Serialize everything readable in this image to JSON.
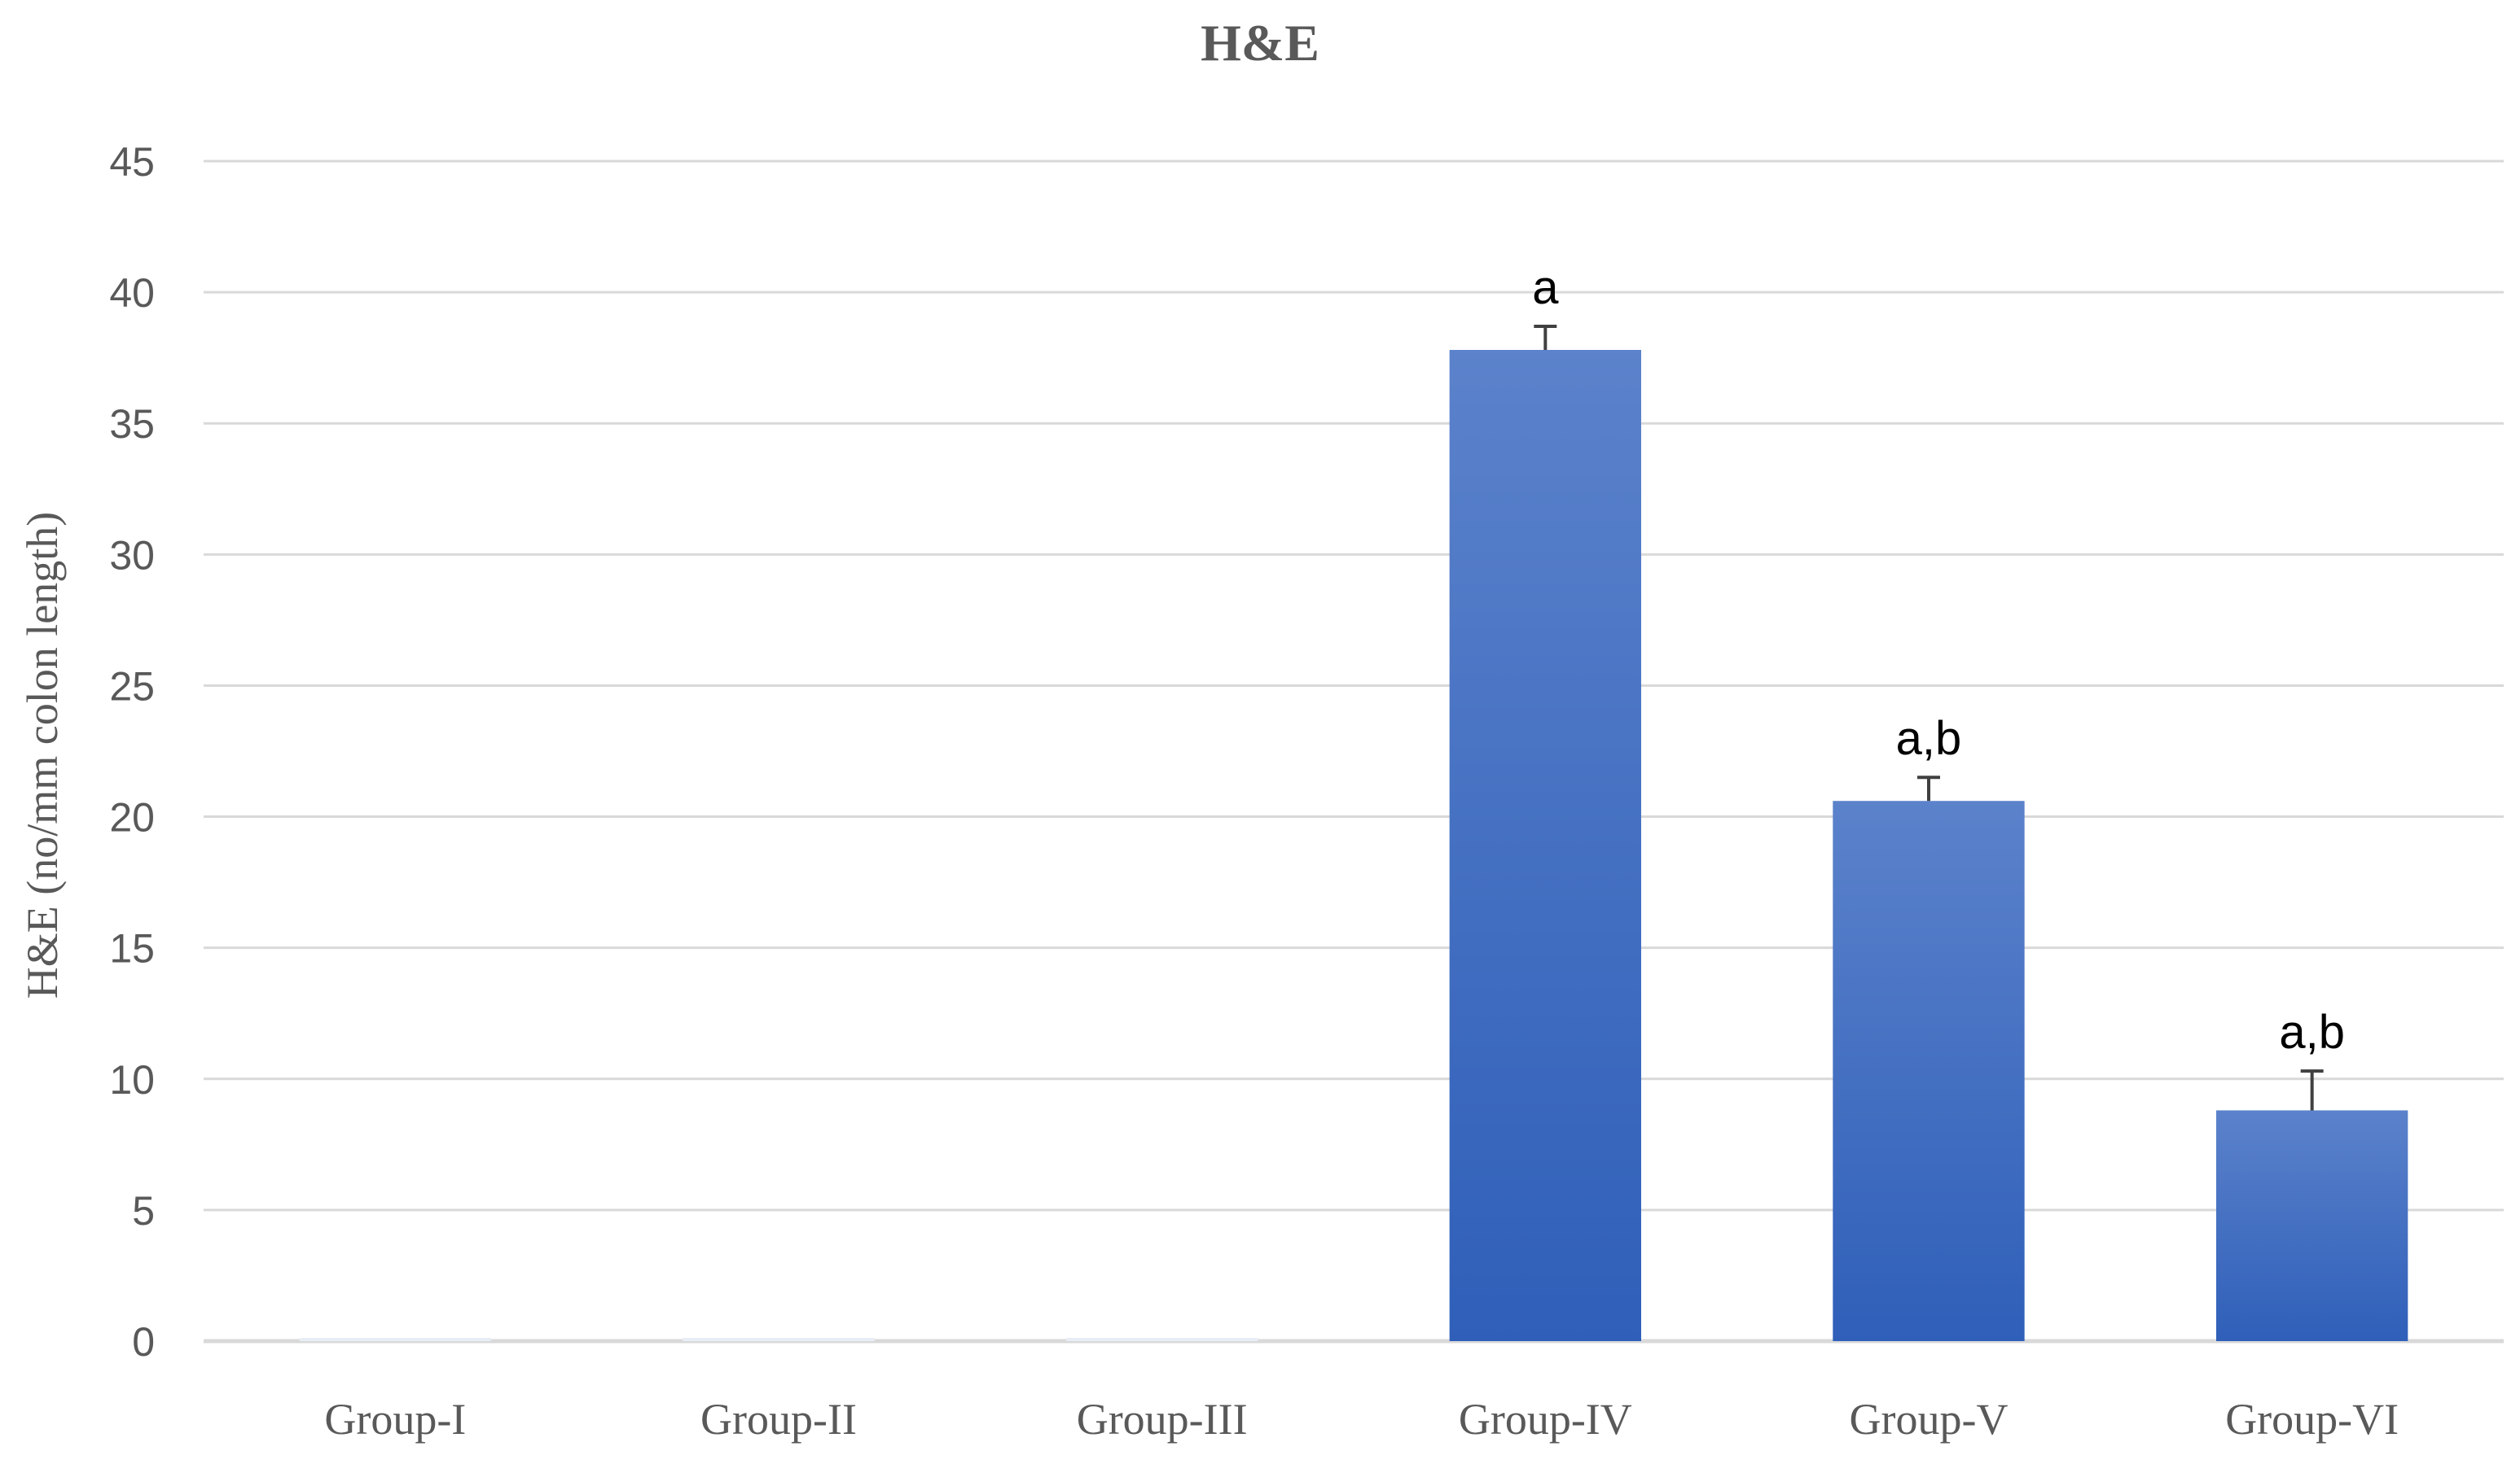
{
  "chart_data": {
    "type": "bar",
    "title": "H&E",
    "xlabel": "",
    "ylabel": "H&E (no/mm colon length)",
    "categories": [
      "Group-I",
      "Group-II",
      "Group-III",
      "Group-IV",
      "Group-V",
      "Group-VI"
    ],
    "values": [
      0,
      0,
      0,
      37.8,
      20.6,
      8.8
    ],
    "error": [
      0,
      0,
      0,
      0.9,
      0.9,
      1.5
    ],
    "annotations": [
      "",
      "",
      "",
      "a",
      "a,b",
      "a,b"
    ],
    "ylim": [
      0,
      45
    ],
    "yticks": [
      0,
      5,
      10,
      15,
      20,
      25,
      30,
      35,
      40,
      45
    ],
    "grid": true,
    "legend": "none",
    "colors": {
      "bar_top": "#5b82cb",
      "bar_bottom": "#2f5fb9",
      "grid": "#d9d9d9",
      "text": "#595959"
    }
  }
}
